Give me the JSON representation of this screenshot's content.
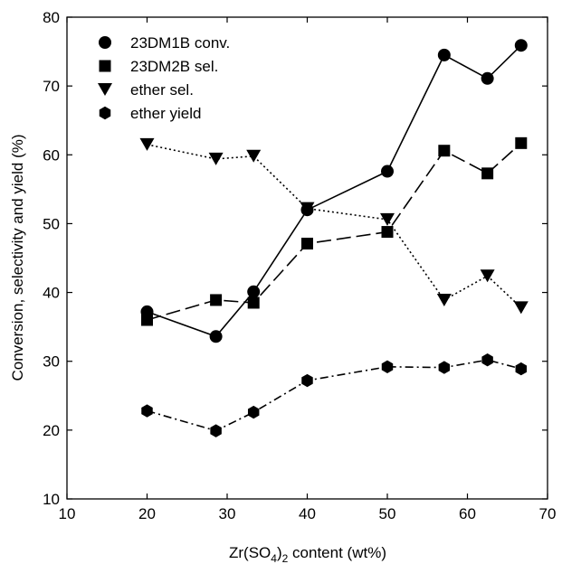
{
  "chart_data": {
    "type": "line",
    "xlabel": {
      "prefix": "Zr(SO",
      "sub1": "4",
      "mid": ")",
      "sub2": "2",
      "suffix": " content (wt%)"
    },
    "ylabel": "Conversion, selectivity and yield (%)",
    "xlim": [
      10,
      70
    ],
    "ylim": [
      10,
      80
    ],
    "xticks": [
      "10",
      "20",
      "30",
      "40",
      "50",
      "60",
      "70"
    ],
    "yticks": [
      "10",
      "20",
      "30",
      "40",
      "50",
      "60",
      "70",
      "80"
    ],
    "legend_position": "top-left",
    "series": [
      {
        "name": "23DM1B conv.",
        "marker": "circle",
        "line": "solid",
        "x": [
          20,
          28.6,
          33.3,
          40,
          50,
          57.1,
          62.5,
          66.7
        ],
        "values": [
          37.2,
          33.6,
          40.1,
          52.0,
          57.6,
          74.5,
          71.1,
          75.9
        ]
      },
      {
        "name": "23DM2B sel.",
        "marker": "square",
        "line": "long-dash",
        "x": [
          20,
          28.6,
          33.3,
          40,
          50,
          57.1,
          62.5,
          66.7
        ],
        "values": [
          36.0,
          38.9,
          38.5,
          47.1,
          48.8,
          60.6,
          57.3,
          61.7
        ]
      },
      {
        "name": "ether sel.",
        "marker": "triangle-down",
        "line": "dotted",
        "x": [
          20,
          28.6,
          33.3,
          40,
          50,
          57.1,
          62.5,
          66.7
        ],
        "values": [
          61.5,
          59.4,
          59.8,
          52.2,
          50.6,
          38.9,
          42.4,
          37.8
        ]
      },
      {
        "name": "ether yield",
        "marker": "hexagon",
        "line": "dash-dot",
        "x": [
          20,
          28.6,
          33.3,
          40,
          50,
          57.1,
          62.5,
          66.7
        ],
        "values": [
          22.8,
          19.9,
          22.6,
          27.2,
          29.2,
          29.1,
          30.2,
          28.9
        ]
      }
    ]
  }
}
